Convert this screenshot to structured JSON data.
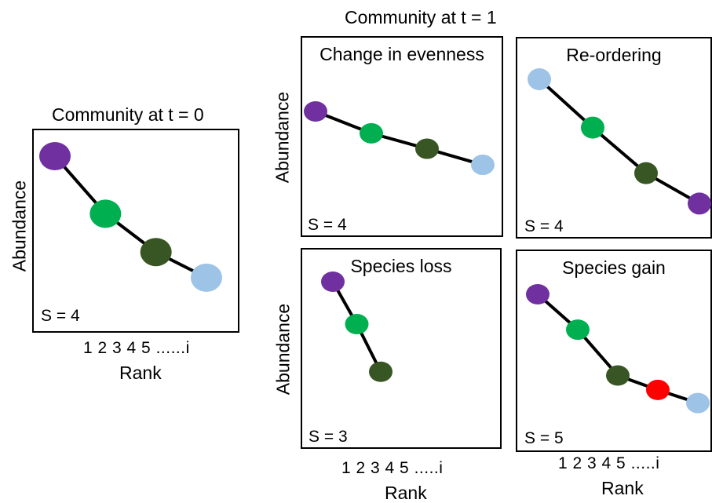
{
  "main_title": "Community at t = 1",
  "y_label": "Abundance",
  "rank_ticks": "1 2 3 4 5 ......i",
  "rank_ticks_short": "1 2 3 4 5 .....i",
  "rank_label": "Rank",
  "colors": {
    "purple": "#7030a0",
    "green": "#00b050",
    "dark_green": "#375623",
    "light_blue": "#9dc3e6",
    "red": "#ff0000"
  },
  "panels": {
    "t0": {
      "title": "Community at t = 0",
      "s_label": "S = 4",
      "points": [
        {
          "color": "purple",
          "abundance": 1.0
        },
        {
          "color": "green",
          "abundance": 0.55
        },
        {
          "color": "dark_green",
          "abundance": 0.25
        },
        {
          "color": "light_blue",
          "abundance": 0.05
        }
      ]
    },
    "evenness": {
      "title": "Change in evenness",
      "s_label": "S = 4",
      "points": [
        {
          "color": "purple",
          "abundance": 1.0
        },
        {
          "color": "green",
          "abundance": 0.66
        },
        {
          "color": "dark_green",
          "abundance": 0.42
        },
        {
          "color": "light_blue",
          "abundance": 0.17
        }
      ]
    },
    "reordering": {
      "title": "Re-ordering",
      "s_label": "S = 4",
      "points": [
        {
          "color": "light_blue",
          "abundance": 1.0
        },
        {
          "color": "green",
          "abundance": 0.65
        },
        {
          "color": "dark_green",
          "abundance": 0.32
        },
        {
          "color": "purple",
          "abundance": 0.1
        }
      ]
    },
    "loss": {
      "title": "Species loss",
      "s_label": "S = 3",
      "points": [
        {
          "color": "purple",
          "abundance": 1.0
        },
        {
          "color": "green",
          "abundance": 0.6
        },
        {
          "color": "dark_green",
          "abundance": 0.15
        }
      ]
    },
    "gain": {
      "title": "Species gain",
      "s_label": "S = 5",
      "points": [
        {
          "color": "purple",
          "abundance": 1.0
        },
        {
          "color": "green",
          "abundance": 0.73
        },
        {
          "color": "dark_green",
          "abundance": 0.38
        },
        {
          "color": "red",
          "abundance": 0.27
        },
        {
          "color": "light_blue",
          "abundance": 0.17
        }
      ]
    }
  }
}
